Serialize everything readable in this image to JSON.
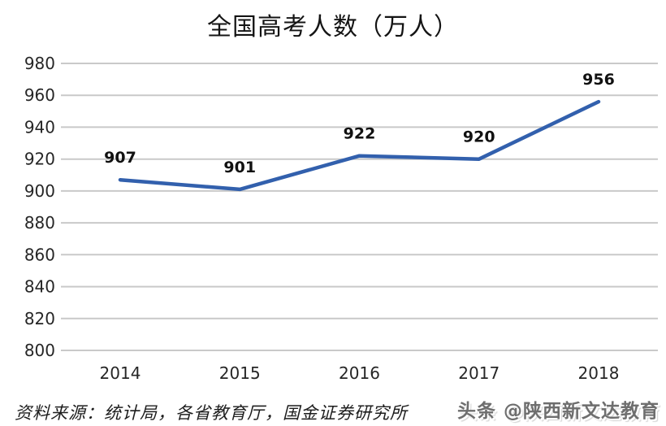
{
  "chart_data": {
    "type": "line",
    "title": "全国高考人数（万人）",
    "categories": [
      "2014",
      "2015",
      "2016",
      "2017",
      "2018"
    ],
    "values": [
      907,
      901,
      922,
      920,
      956
    ],
    "data_labels": [
      "907",
      "901",
      "922",
      "920",
      "956"
    ],
    "yticks": [
      800,
      820,
      840,
      860,
      880,
      900,
      920,
      940,
      960,
      980
    ],
    "ylim": [
      800,
      980
    ],
    "xlabel": "",
    "ylabel": "",
    "grid": true,
    "legend": "none",
    "line_color": "#3260ad",
    "grid_color": "#c9c9c9",
    "tick_color": "#262626",
    "label_color": "#111111"
  },
  "footer": {
    "source": "资料来源：统计局，各省教育厅，国金证券研究所",
    "watermark": "头条 @陕西新文达教育"
  }
}
